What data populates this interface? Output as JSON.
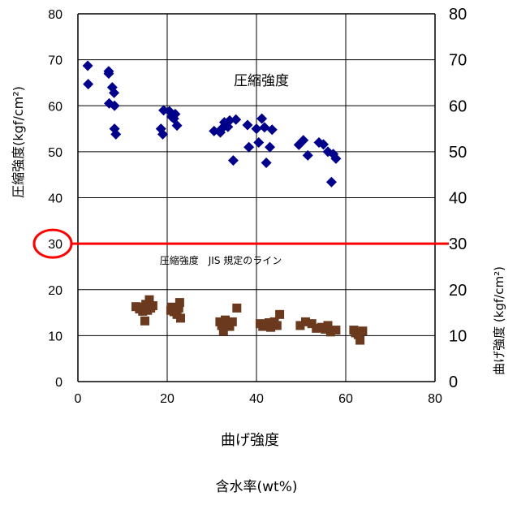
{
  "chart_data": {
    "type": "scatter",
    "xlabel": "含水率(wt%)",
    "ylabel": "圧縮強度(kgf/cm²)",
    "ylabel_right": "曲げ強度 (kgf/cm²)",
    "xlim": [
      0,
      80
    ],
    "ylim": [
      0,
      80
    ],
    "x_ticks": [
      "0",
      "20",
      "40",
      "60",
      "80"
    ],
    "y_ticks": [
      "0",
      "10",
      "20",
      "30",
      "40",
      "50",
      "60",
      "70",
      "80"
    ],
    "grid": true,
    "annotations": {
      "compressive_label": "圧縮強度",
      "jis_line_label": "圧縮強度　JIS 規定のライン",
      "bending_label": "曲げ強度"
    },
    "reference_line": {
      "y": 30,
      "color": "#ff0000",
      "highlight_label": "30"
    },
    "series": [
      {
        "marker": "diamond",
        "color": "#00008b",
        "points": [
          [
            2.2,
            68.7
          ],
          [
            2.3,
            64.7
          ],
          [
            6.9,
            67.5
          ],
          [
            6.9,
            67.0
          ],
          [
            7.0,
            60.5
          ],
          [
            7.7,
            64.0
          ],
          [
            8.1,
            62.8
          ],
          [
            8.2,
            60.0
          ],
          [
            8.2,
            55.0
          ],
          [
            8.5,
            53.8
          ],
          [
            18.6,
            55.0
          ],
          [
            19.0,
            53.8
          ],
          [
            19.2,
            59.0
          ],
          [
            20.5,
            58.8
          ],
          [
            21.0,
            57.6
          ],
          [
            21.5,
            57.2
          ],
          [
            21.8,
            58.2
          ],
          [
            22.2,
            55.7
          ],
          [
            30.5,
            54.5
          ],
          [
            31.9,
            54.2
          ],
          [
            32.2,
            55.0
          ],
          [
            32.8,
            56.4
          ],
          [
            33.6,
            55.4
          ],
          [
            34.0,
            56.8
          ],
          [
            34.8,
            48.1
          ],
          [
            35.4,
            57.0
          ],
          [
            38.0,
            55.8
          ],
          [
            38.3,
            51.0
          ],
          [
            40.0,
            55.0
          ],
          [
            40.5,
            52.0
          ],
          [
            41.2,
            57.2
          ],
          [
            41.8,
            55.3
          ],
          [
            42.2,
            47.6
          ],
          [
            43.0,
            51.0
          ],
          [
            43.5,
            54.8
          ],
          [
            49.5,
            51.5
          ],
          [
            50.5,
            52.5
          ],
          [
            51.5,
            49.2
          ],
          [
            54.0,
            52.0
          ],
          [
            55.0,
            51.6
          ],
          [
            56.0,
            50.0
          ],
          [
            56.8,
            43.4
          ],
          [
            57.2,
            49.5
          ],
          [
            57.8,
            48.5
          ]
        ]
      },
      {
        "marker": "square",
        "color": "#6b3a1e",
        "points": [
          [
            13.0,
            16.3
          ],
          [
            13.8,
            15.8
          ],
          [
            14.5,
            15.3
          ],
          [
            14.8,
            16.2
          ],
          [
            15.0,
            13.2
          ],
          [
            15.2,
            16.8
          ],
          [
            15.6,
            15.5
          ],
          [
            16.0,
            17.8
          ],
          [
            16.3,
            16.0
          ],
          [
            16.8,
            16.5
          ],
          [
            20.8,
            15.5
          ],
          [
            21.0,
            16.2
          ],
          [
            21.5,
            15.2
          ],
          [
            22.2,
            14.6
          ],
          [
            22.6,
            16.0
          ],
          [
            22.8,
            17.2
          ],
          [
            23.0,
            13.8
          ],
          [
            31.8,
            13.0
          ],
          [
            32.2,
            12.2
          ],
          [
            32.6,
            11.0
          ],
          [
            33.0,
            13.4
          ],
          [
            33.6,
            12.8
          ],
          [
            34.0,
            12.0
          ],
          [
            34.6,
            13.0
          ],
          [
            35.6,
            16.0
          ],
          [
            40.8,
            12.6
          ],
          [
            41.4,
            12.0
          ],
          [
            42.2,
            12.4
          ],
          [
            42.8,
            12.8
          ],
          [
            43.2,
            11.8
          ],
          [
            44.0,
            13.0
          ],
          [
            44.6,
            12.2
          ],
          [
            45.2,
            14.6
          ],
          [
            49.8,
            12.2
          ],
          [
            51.0,
            13.0
          ],
          [
            52.4,
            12.6
          ],
          [
            53.4,
            11.6
          ],
          [
            54.6,
            11.8
          ],
          [
            55.4,
            11.4
          ],
          [
            56.0,
            12.2
          ],
          [
            56.6,
            10.8
          ],
          [
            57.8,
            11.2
          ],
          [
            61.8,
            11.2
          ],
          [
            62.2,
            10.6
          ],
          [
            62.8,
            10.2
          ],
          [
            63.2,
            9.0
          ],
          [
            63.8,
            11.0
          ]
        ]
      }
    ]
  }
}
